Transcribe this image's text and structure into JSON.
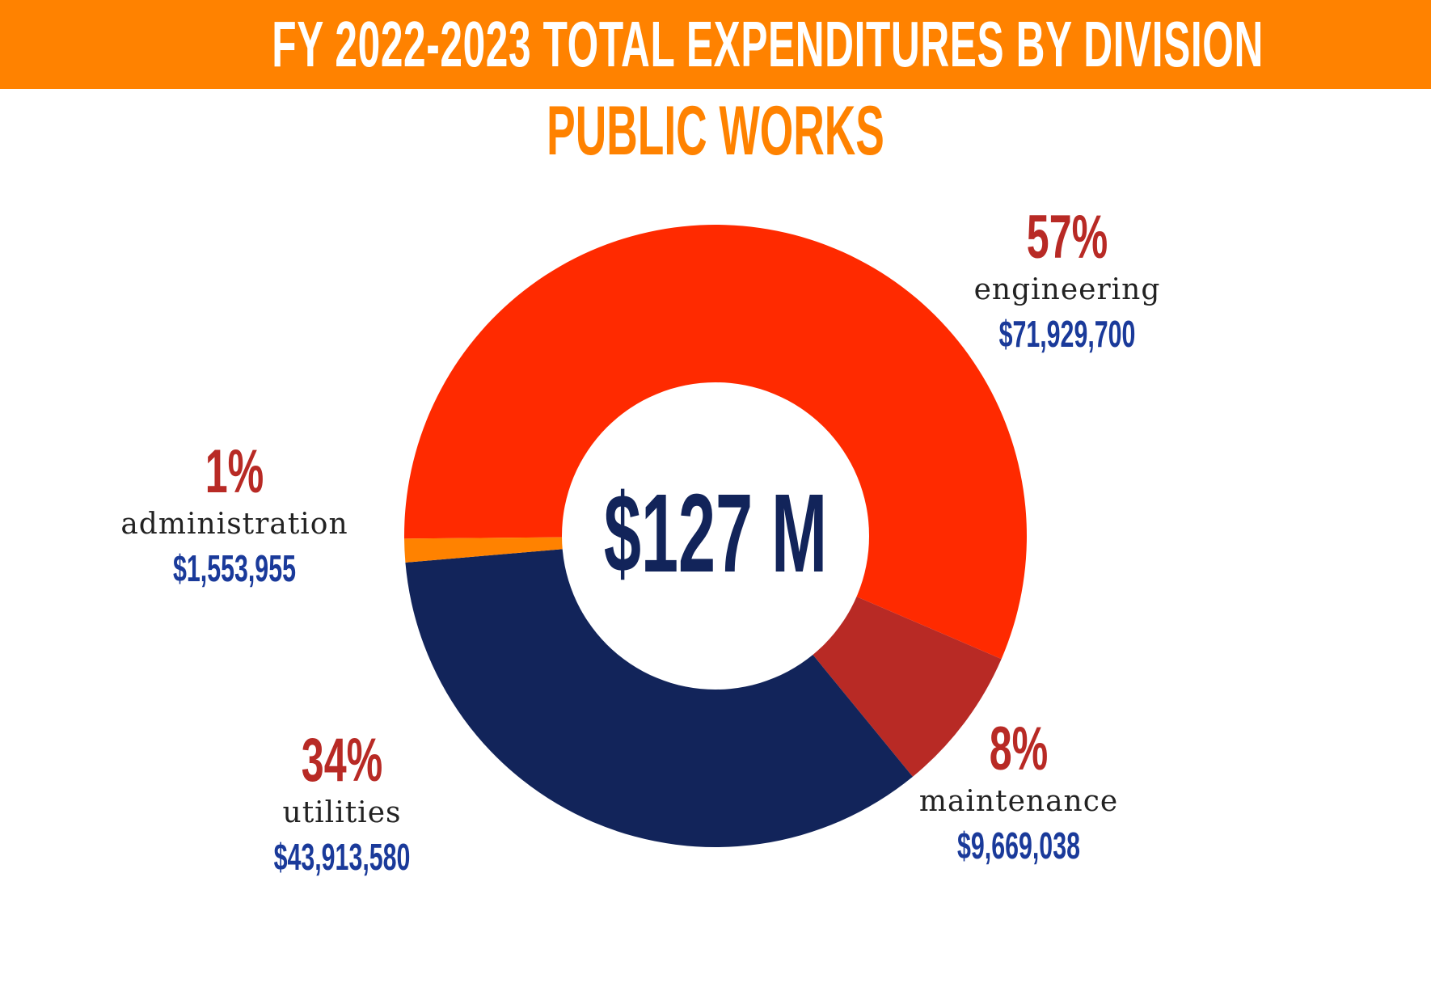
{
  "header": {
    "title": "FY 2022-2023 TOTAL EXPENDITURES BY DIVISION",
    "subtitle": "PUBLIC WORKS"
  },
  "colors": {
    "banner": "#ff8200",
    "engineering": "#ff2a00",
    "maintenance": "#b82a25",
    "utilities": "#12245a",
    "administration": "#ff8200"
  },
  "chart_data": {
    "type": "pie",
    "title": "FY 2022-2023 TOTAL EXPENDITURES BY DIVISION",
    "subtitle": "PUBLIC WORKS",
    "center_label": "$127 M",
    "slices": [
      {
        "key": "engineering",
        "label": "engineering",
        "percent_label": "57%",
        "amount_label": "$71,929,700",
        "value": 71929700,
        "color": "#ff2a00"
      },
      {
        "key": "maintenance",
        "label": "maintenance",
        "percent_label": "8%",
        "amount_label": "$9,669,038",
        "value": 9669038,
        "color": "#b82a25"
      },
      {
        "key": "utilities",
        "label": "utilities",
        "percent_label": "34%",
        "amount_label": "$43,913,580",
        "value": 43913580,
        "color": "#12245a"
      },
      {
        "key": "administration",
        "label": "administration",
        "percent_label": "1%",
        "amount_label": "$1,553,955",
        "value": 1553955,
        "color": "#ff8200"
      }
    ]
  }
}
